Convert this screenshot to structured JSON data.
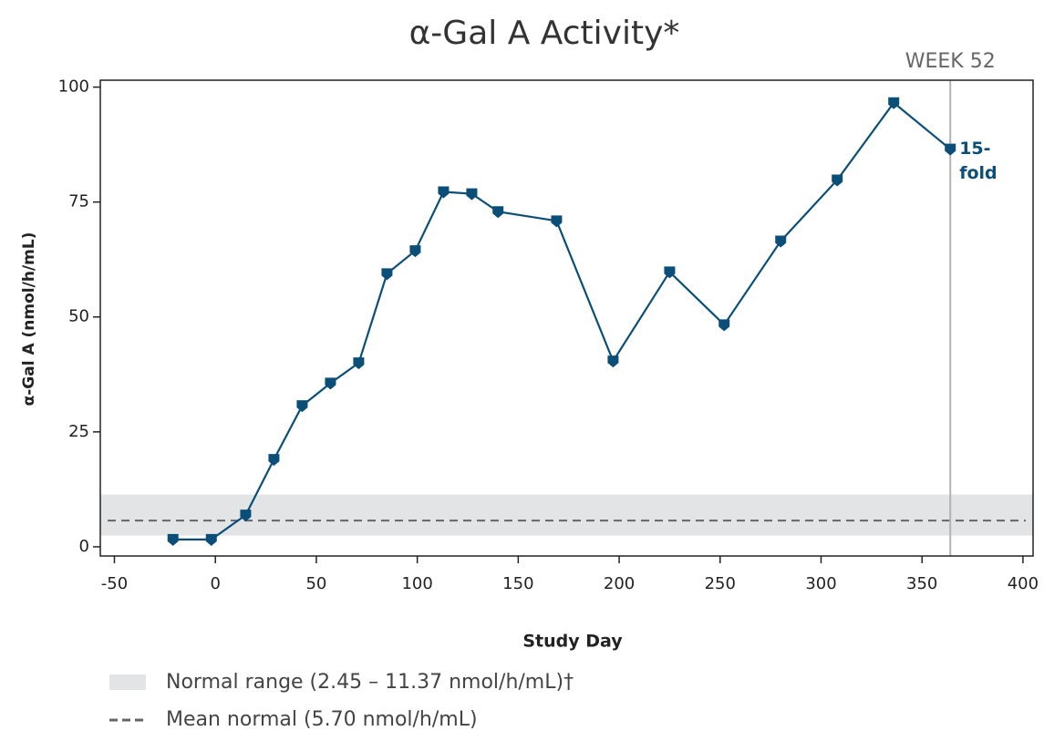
{
  "chart_data": {
    "type": "line",
    "title": "α-Gal A Activity*",
    "x_label": "Study Day",
    "y_label": "α-Gal A (nmol/h/mL)",
    "x": [
      -21,
      -2,
      15,
      29,
      43,
      57,
      71,
      85,
      99,
      113,
      127,
      140,
      169,
      197,
      225,
      252,
      280,
      308,
      336,
      364
    ],
    "series": [
      {
        "name": "α-Gal A",
        "color": "#0b4f79",
        "values": [
          1.6,
          1.6,
          6.9,
          19,
          30.7,
          35.6,
          40,
          59.4,
          64.4,
          77.2,
          76.8,
          72.9,
          70.9,
          40.4,
          59.8,
          48.3,
          66.5,
          79.8,
          96.6,
          86.5
        ]
      }
    ],
    "xlim": [
      -57,
      405
    ],
    "ylim": [
      -2,
      101.5
    ],
    "xticks": [
      -50,
      0,
      50,
      100,
      150,
      200,
      250,
      300,
      350,
      400
    ],
    "yticks": [
      0,
      25,
      50,
      75,
      100
    ],
    "reference_band": {
      "low": 2.45,
      "high": 11.37,
      "color": "#e3e4e5",
      "label": "Normal range (2.45 – 11.37 nmol/h/mL)†"
    },
    "reference_line": {
      "value": 5.7,
      "color": "#666666",
      "label": "Mean normal (5.70 nmol/h/mL)"
    },
    "vline": {
      "x": 364,
      "color": "#b3b3b3",
      "label": "WEEK 52"
    },
    "annotation": {
      "lines": [
        "15-",
        "fold"
      ],
      "color": "#0b4f79"
    }
  }
}
